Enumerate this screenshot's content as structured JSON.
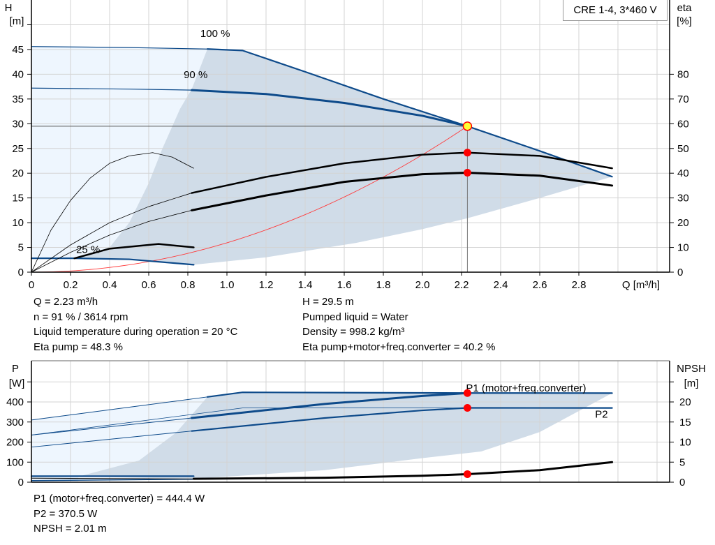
{
  "title": "CRE 1-4, 3*460 V",
  "colors": {
    "blue": "#0d4a8a",
    "light_area": "#eef6fe",
    "dark_area": "#d0dce8",
    "system": "#ff3b3b",
    "op_point": "#ff0000",
    "op_yellow": "#ffff33",
    "grid": "#d3d3d3"
  },
  "info_top": {
    "left": [
      "Q = 2.23 m³/h",
      "n = 91 % / 3614 rpm",
      "Liquid temperature during operation = 20 °C",
      "Eta pump = 48.3 %"
    ],
    "right": [
      "H = 29.5 m",
      "Pumped liquid = Water",
      "Density = 998.2 kg/m³",
      "Eta pump+motor+freq.converter = 40.2 %"
    ]
  },
  "info_bottom": [
    "P1 (motor+freq.converter) = 444.4 W",
    "P2 = 370.5 W",
    "NPSH = 2.01 m"
  ],
  "chart_data": [
    {
      "type": "line",
      "title": "",
      "xlabel": "Q [m³/h]",
      "ylabel_left": [
        "H",
        "[m]"
      ],
      "ylabel_right": [
        "eta",
        "[%]"
      ],
      "xlim": [
        0,
        3.2
      ],
      "ylim_left": [
        0,
        50
      ],
      "ylim_right": [
        0,
        100
      ],
      "grid": true,
      "x_ticks": [
        "0",
        "0.2",
        "0.4",
        "0.6",
        "0.8",
        "1.0",
        "1.2",
        "1.4",
        "1.6",
        "1.8",
        "2.0",
        "2.2",
        "2.4",
        "2.6",
        "2.8"
      ],
      "y_ticks_left": [
        "0",
        "5",
        "10",
        "15",
        "20",
        "25",
        "30",
        "35",
        "40",
        "45"
      ],
      "y_ticks_right": [
        "0",
        "10",
        "20",
        "30",
        "40",
        "50",
        "60",
        "70",
        "80"
      ],
      "curve_labels": [
        {
          "text": "100 %",
          "q": 0.94,
          "h": 47.5
        },
        {
          "text": "90 %",
          "q": 0.84,
          "h": 39.2
        },
        {
          "text": "25 %",
          "q": 0.29,
          "h": 3.9
        }
      ],
      "operating_point": {
        "q": 2.23,
        "h": 29.5,
        "eta_pump": 48.3,
        "eta_total": 40.2
      },
      "light_area": [
        [
          0,
          2.8
        ],
        [
          0,
          45.6
        ],
        [
          0.9,
          45.1
        ],
        [
          0.82,
          37
        ],
        [
          0.76,
          33
        ],
        [
          0.67,
          25
        ],
        [
          0.6,
          18
        ],
        [
          0.5,
          10
        ],
        [
          0.4,
          5
        ],
        [
          0.22,
          2.8
        ]
      ],
      "dark_area": [
        [
          0.9,
          45.1
        ],
        [
          1.08,
          44.8
        ],
        [
          1.4,
          40.5
        ],
        [
          1.8,
          35
        ],
        [
          2.23,
          29.5
        ],
        [
          2.6,
          24.5
        ],
        [
          2.97,
          19.3
        ],
        [
          2.6,
          15
        ],
        [
          2.23,
          10.9
        ],
        [
          2.0,
          8.7
        ],
        [
          1.66,
          5.9
        ],
        [
          1.2,
          3
        ],
        [
          0.83,
          1.5
        ],
        [
          0.5,
          2.6
        ],
        [
          0.22,
          2.8
        ],
        [
          0.4,
          5
        ],
        [
          0.5,
          10
        ],
        [
          0.6,
          18
        ],
        [
          0.67,
          25
        ],
        [
          0.76,
          33
        ],
        [
          0.82,
          37
        ]
      ],
      "series": [
        {
          "axis": "H",
          "color": "blue",
          "width": 1.2,
          "points": [
            [
              0,
              45.6
            ],
            [
              0.5,
              45.4
            ],
            [
              0.9,
              45.1
            ]
          ]
        },
        {
          "axis": "H",
          "color": "blue",
          "width": 2.2,
          "points": [
            [
              0.9,
              45.1
            ],
            [
              1.08,
              44.8
            ],
            [
              1.4,
              40.5
            ],
            [
              1.8,
              35
            ],
            [
              2.23,
              29.5
            ],
            [
              2.6,
              24.5
            ],
            [
              2.97,
              19.3
            ]
          ]
        },
        {
          "axis": "H",
          "color": "blue",
          "width": 1.2,
          "points": [
            [
              0,
              37.2
            ],
            [
              0.5,
              37
            ],
            [
              0.82,
              36.8
            ]
          ]
        },
        {
          "axis": "H",
          "color": "blue",
          "width": 3,
          "points": [
            [
              0.82,
              36.8
            ],
            [
              1.2,
              36
            ],
            [
              1.6,
              34.2
            ],
            [
              2.0,
              31.6
            ],
            [
              2.23,
              29.5
            ]
          ]
        },
        {
          "axis": "H",
          "color": "blue",
          "width": 2.2,
          "points": [
            [
              0,
              2.8
            ],
            [
              0.22,
              2.8
            ],
            [
              0.5,
              2.6
            ],
            [
              0.83,
              1.5
            ]
          ]
        },
        {
          "axis": "eta",
          "color": "black",
          "width": 0.8,
          "points": [
            [
              0,
              0
            ],
            [
              0.1,
              17
            ],
            [
              0.2,
              29
            ],
            [
              0.3,
              38
            ],
            [
              0.4,
              44
            ],
            [
              0.5,
              47
            ],
            [
              0.62,
              48.3
            ],
            [
              0.72,
              46.5
            ],
            [
              0.83,
              42
            ]
          ]
        },
        {
          "axis": "eta",
          "color": "black",
          "width": 0.8,
          "points": [
            [
              0,
              0
            ],
            [
              0.2,
              11
            ],
            [
              0.4,
              20
            ],
            [
              0.6,
              26.5
            ],
            [
              0.82,
              32
            ]
          ]
        },
        {
          "axis": "eta",
          "color": "black",
          "width": 0.8,
          "points": [
            [
              0,
              0
            ],
            [
              0.2,
              8
            ],
            [
              0.4,
              15
            ],
            [
              0.6,
              20.5
            ],
            [
              0.82,
              25
            ]
          ]
        },
        {
          "axis": "eta",
          "color": "black",
          "width": 2.5,
          "points": [
            [
              0.82,
              32
            ],
            [
              1.2,
              38.5
            ],
            [
              1.6,
              44
            ],
            [
              2.0,
              47.5
            ],
            [
              2.23,
              48.3
            ],
            [
              2.6,
              47
            ],
            [
              2.97,
              42
            ]
          ]
        },
        {
          "axis": "eta",
          "color": "black",
          "width": 3,
          "points": [
            [
              0.82,
              25
            ],
            [
              1.2,
              31
            ],
            [
              1.6,
              36.5
            ],
            [
              2.0,
              39.6
            ],
            [
              2.23,
              40.2
            ],
            [
              2.6,
              39
            ],
            [
              2.97,
              35
            ]
          ]
        },
        {
          "axis": "eta",
          "color": "black",
          "width": 2.5,
          "points": [
            [
              0.22,
              5.6
            ],
            [
              0.4,
              9.5
            ],
            [
              0.65,
              11.4
            ],
            [
              0.83,
              10
            ]
          ]
        }
      ],
      "system_curve": {
        "q_max": 2.23,
        "h_at_q_max": 29.5
      }
    },
    {
      "type": "line",
      "title": "",
      "ylabel_left": [
        "P",
        "[W]"
      ],
      "ylabel_right": [
        "NPSH",
        "[m]"
      ],
      "xlim": [
        0,
        3.2
      ],
      "ylim_left": [
        0,
        600
      ],
      "ylim_right": [
        0,
        30
      ],
      "grid": true,
      "y_ticks_left": [
        "0",
        "100",
        "200",
        "300",
        "400"
      ],
      "y_ticks_right": [
        "0",
        "5",
        "10",
        "15",
        "20"
      ],
      "legend_labels": [
        {
          "text": "P1 (motor+freq.converter)",
          "q": 2.23,
          "p": 470,
          "color": "blue"
        },
        {
          "text": "P2",
          "q": 2.89,
          "p": 340,
          "color": "blue"
        }
      ],
      "operating_point": {
        "q": 2.23,
        "p1": 444.4,
        "p2": 370.5,
        "npsh": 2.01
      },
      "light_area": [
        [
          0,
          0
        ],
        [
          0,
          310
        ],
        [
          0.9,
          425
        ],
        [
          0.74,
          247
        ],
        [
          0.55,
          108
        ],
        [
          0.24,
          28
        ],
        [
          0.24,
          0
        ]
      ],
      "dark_area": [
        [
          0.9,
          425
        ],
        [
          1.08,
          448
        ],
        [
          2.97,
          444
        ],
        [
          2.6,
          250
        ],
        [
          2.3,
          153
        ],
        [
          2.0,
          120
        ],
        [
          1.5,
          60
        ],
        [
          0.83,
          17
        ],
        [
          0.24,
          28
        ],
        [
          0.55,
          108
        ],
        [
          0.74,
          247
        ]
      ],
      "series": [
        {
          "axis": "P",
          "color": "blue",
          "width": 1,
          "points": [
            [
              0,
              310
            ],
            [
              0.9,
              425
            ]
          ]
        },
        {
          "axis": "P",
          "color": "blue",
          "width": 2.2,
          "points": [
            [
              0.9,
              425
            ],
            [
              1.08,
              448
            ],
            [
              2.23,
              444.4
            ],
            [
              2.97,
              444
            ]
          ]
        },
        {
          "axis": "P",
          "color": "blue",
          "width": 1,
          "points": [
            [
              0,
              235
            ],
            [
              0.82,
              320
            ]
          ]
        },
        {
          "axis": "P",
          "color": "blue",
          "width": 3,
          "points": [
            [
              0.82,
              320
            ],
            [
              1.5,
              390
            ],
            [
              2.0,
              430
            ],
            [
              2.23,
              444.4
            ]
          ]
        },
        {
          "axis": "P",
          "color": "blue",
          "width": 0.8,
          "points": [
            [
              0,
              235
            ],
            [
              1.08,
              370
            ],
            [
              2.97,
              370
            ]
          ]
        },
        {
          "axis": "P",
          "color": "blue",
          "width": 1,
          "points": [
            [
              0,
              175
            ],
            [
              0.82,
              255
            ]
          ]
        },
        {
          "axis": "P",
          "color": "blue",
          "width": 2.2,
          "points": [
            [
              0.82,
              255
            ],
            [
              1.5,
              320
            ],
            [
              2.0,
              358
            ],
            [
              2.23,
              370.5
            ],
            [
              2.97,
              370
            ]
          ]
        },
        {
          "axis": "P",
          "color": "blue",
          "width": 2.2,
          "points": [
            [
              0,
              30
            ],
            [
              0.83,
              30
            ]
          ]
        },
        {
          "axis": "P",
          "color": "blue",
          "width": 1.5,
          "points": [
            [
              0,
              8
            ],
            [
              0.83,
              15
            ]
          ]
        },
        {
          "axis": "NPSH",
          "color": "black",
          "width": 1,
          "points": [
            [
              0,
              1
            ],
            [
              0.83,
              0.8
            ]
          ]
        },
        {
          "axis": "NPSH",
          "color": "black",
          "width": 3,
          "points": [
            [
              0.83,
              0.85
            ],
            [
              1.5,
              1.1
            ],
            [
              2.0,
              1.6
            ],
            [
              2.23,
              2.01
            ],
            [
              2.6,
              3
            ],
            [
              2.97,
              5
            ]
          ]
        }
      ]
    }
  ]
}
